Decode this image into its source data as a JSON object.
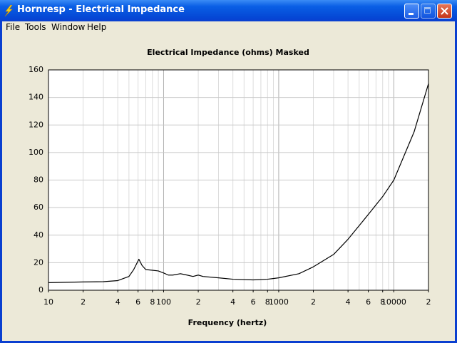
{
  "window": {
    "title": "Hornresp - Electrical Impedance",
    "menu": [
      "File",
      "Tools",
      "Window",
      "Help"
    ]
  },
  "chart_data": {
    "type": "line",
    "title": "Electrical Impedance (ohms)   Masked",
    "x_label": "Frequency (hertz)",
    "x": [
      10,
      20,
      30,
      40,
      50,
      55,
      61,
      65,
      70,
      80,
      90,
      100,
      110,
      120,
      140,
      160,
      180,
      200,
      220,
      300,
      400,
      600,
      800,
      1000,
      1500,
      2000,
      3000,
      4000,
      6000,
      8000,
      10000,
      15000,
      20000
    ],
    "values": [
      5.5,
      6,
      6.2,
      7,
      10,
      15,
      22.5,
      18,
      15,
      14.5,
      14,
      12.5,
      11,
      11,
      12,
      11,
      10,
      11,
      10,
      9,
      8,
      7.5,
      8,
      9,
      12,
      17,
      26,
      37,
      55,
      68,
      80,
      115,
      150
    ],
    "color": "#000000",
    "xscale": "log",
    "grid": true,
    "xlim": [
      10,
      20000
    ],
    "ylim": [
      0,
      160
    ],
    "xticks": [
      10,
      {
        "value": 20,
        "label": "2"
      },
      {
        "value": 40,
        "label": "4"
      },
      {
        "value": 60,
        "label": "6"
      },
      {
        "value": 80,
        "label": "8"
      },
      100,
      {
        "value": 200,
        "label": "2"
      },
      {
        "value": 400,
        "label": "4"
      },
      {
        "value": 600,
        "label": "6"
      },
      {
        "value": 800,
        "label": "8"
      },
      1000,
      {
        "value": 2000,
        "label": "2"
      },
      {
        "value": 4000,
        "label": "4"
      },
      {
        "value": 6000,
        "label": "6"
      },
      {
        "value": 8000,
        "label": "8"
      },
      10000,
      {
        "value": 20000,
        "label": "2"
      }
    ],
    "yticks": [
      0,
      20,
      40,
      60,
      80,
      100,
      120,
      140,
      160
    ]
  }
}
